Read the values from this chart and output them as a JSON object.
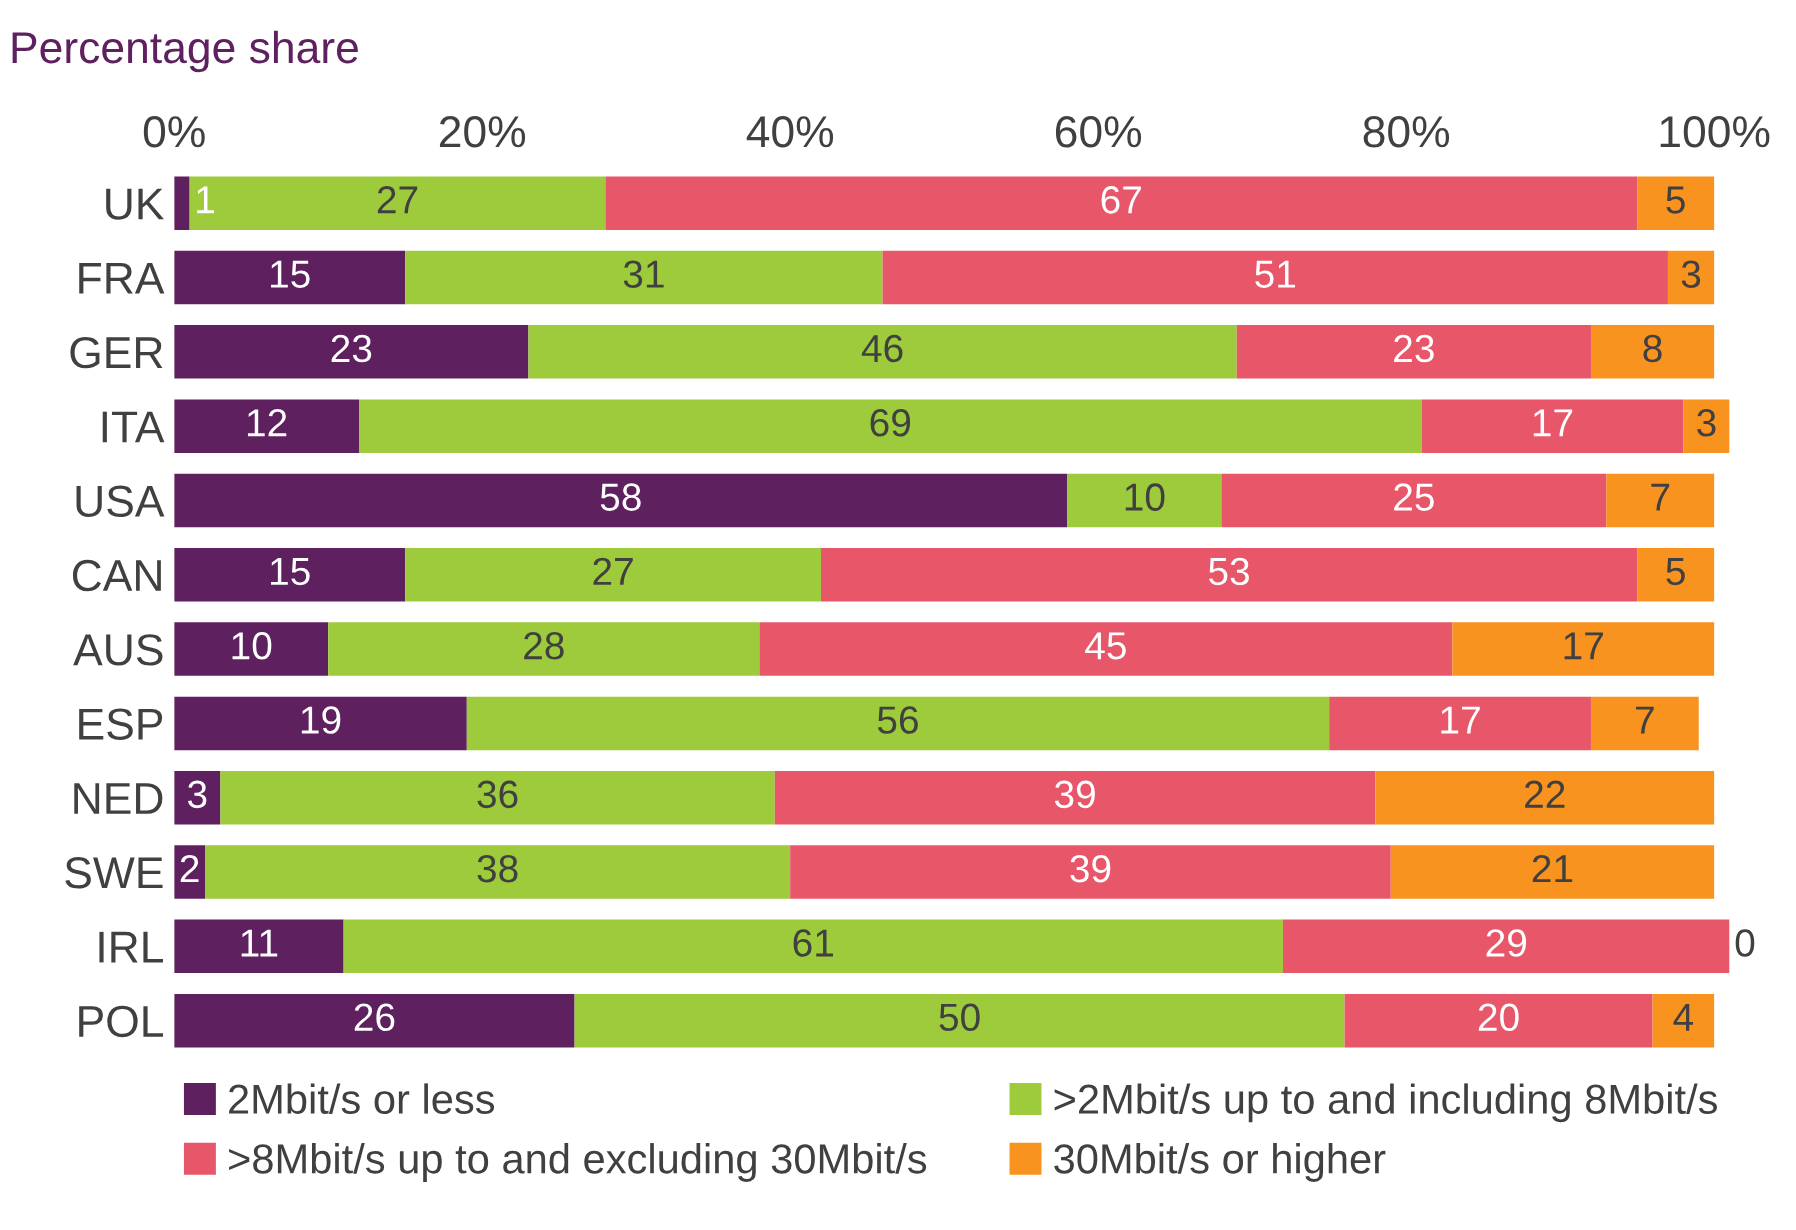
{
  "chart_data": {
    "type": "bar",
    "orientation": "horizontal",
    "stacked": true,
    "title": "Percentage share",
    "categories": [
      "UK",
      "FRA",
      "GER",
      "ITA",
      "USA",
      "CAN",
      "AUS",
      "ESP",
      "NED",
      "SWE",
      "IRL",
      "POL"
    ],
    "series": [
      {
        "name": "2Mbit/s or less",
        "color": "#5f2060",
        "values": [
          1,
          15,
          23,
          12,
          58,
          15,
          10,
          19,
          3,
          2,
          11,
          26
        ]
      },
      {
        "name": ">2Mbit/s up to and including 8Mbit/s",
        "color": "#9dcb3c",
        "values": [
          27,
          31,
          46,
          69,
          10,
          27,
          28,
          56,
          36,
          38,
          61,
          50
        ]
      },
      {
        "name": ">8Mbit/s up to and excluding 30Mbit/s",
        "color": "#e8566a",
        "values": [
          67,
          51,
          23,
          17,
          25,
          53,
          45,
          17,
          39,
          39,
          29,
          20
        ]
      },
      {
        "name": "30Mbit/s or higher",
        "color": "#f7931e",
        "values": [
          5,
          3,
          8,
          3,
          7,
          5,
          17,
          7,
          22,
          21,
          0,
          4
        ]
      }
    ],
    "xlim": [
      0,
      101
    ],
    "xticks": [
      {
        "value": 0,
        "label": "0%"
      },
      {
        "value": 20,
        "label": "20%"
      },
      {
        "value": 40,
        "label": "40%"
      },
      {
        "value": 60,
        "label": "60%"
      },
      {
        "value": 80,
        "label": "80%"
      },
      {
        "value": 100,
        "label": "100%"
      }
    ],
    "data_labels": true,
    "legend": "bottom",
    "grid": false
  }
}
